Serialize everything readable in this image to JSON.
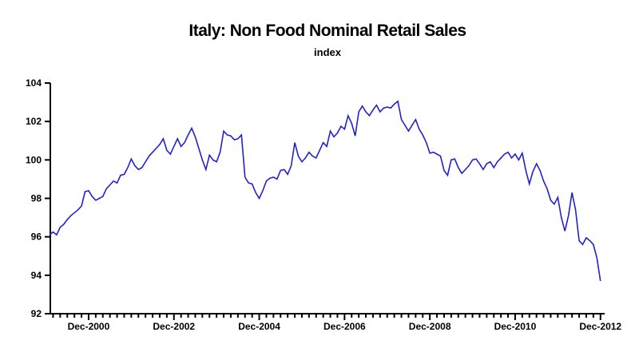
{
  "page": {
    "background": "#ffffff"
  },
  "chart_data": {
    "type": "line",
    "title": "Italy: Non Food Nominal Retail Sales",
    "subtitle": "index",
    "grid": false,
    "legend": "none",
    "axis_color": "#000000",
    "text_color": "#000000",
    "ylim": [
      92,
      104
    ],
    "y_ticks": [
      92,
      94,
      96,
      98,
      100,
      102,
      104
    ],
    "x_tick_labels": [
      "Dec-2000",
      "Dec-2002",
      "Dec-2004",
      "Dec-2006",
      "Dec-2008",
      "Dec-2010",
      "Dec-2012"
    ],
    "x_major_tick_month_indices": [
      11,
      35,
      59,
      83,
      107,
      131,
      155
    ],
    "x_minor_tick_every_months": 2,
    "series": [
      {
        "name": "Non Food Nominal Retail Sales index",
        "color": "#2222cc",
        "frequency": "monthly",
        "start": "Jan-2000",
        "end": "Dec-2012",
        "values": [
          96.1,
          96.25,
          96.1,
          96.5,
          96.65,
          96.9,
          97.1,
          97.25,
          97.4,
          97.6,
          98.35,
          98.4,
          98.1,
          97.9,
          98.0,
          98.1,
          98.5,
          98.7,
          98.9,
          98.8,
          99.2,
          99.25,
          99.6,
          100.05,
          99.7,
          99.5,
          99.6,
          99.9,
          100.2,
          100.4,
          100.6,
          100.8,
          101.1,
          100.5,
          100.3,
          100.7,
          101.1,
          100.7,
          100.9,
          101.3,
          101.65,
          101.2,
          100.6,
          100.0,
          99.5,
          100.25,
          100.0,
          99.9,
          100.4,
          101.5,
          101.3,
          101.25,
          101.05,
          101.1,
          101.3,
          99.1,
          98.8,
          98.75,
          98.3,
          98.0,
          98.4,
          98.9,
          99.05,
          99.1,
          99.0,
          99.45,
          99.5,
          99.25,
          99.7,
          100.9,
          100.2,
          99.9,
          100.1,
          100.4,
          100.2,
          100.1,
          100.5,
          100.9,
          100.7,
          101.5,
          101.2,
          101.4,
          101.75,
          101.6,
          102.3,
          101.9,
          101.25,
          102.5,
          102.8,
          102.5,
          102.3,
          102.6,
          102.85,
          102.5,
          102.7,
          102.75,
          102.7,
          102.9,
          103.05,
          102.1,
          101.8,
          101.5,
          101.8,
          102.1,
          101.6,
          101.3,
          100.9,
          100.35,
          100.4,
          100.3,
          100.2,
          99.45,
          99.2,
          100.0,
          100.05,
          99.6,
          99.3,
          99.5,
          99.7,
          100.0,
          100.05,
          99.8,
          99.5,
          99.8,
          99.9,
          99.6,
          99.9,
          100.1,
          100.3,
          100.4,
          100.1,
          100.3,
          100.0,
          100.35,
          99.45,
          98.75,
          99.4,
          99.8,
          99.45,
          98.9,
          98.5,
          97.9,
          97.7,
          98.05,
          97.0,
          96.3,
          97.1,
          98.3,
          97.4,
          95.8,
          95.6,
          95.95,
          95.8,
          95.6,
          94.9,
          93.7
        ]
      }
    ]
  }
}
